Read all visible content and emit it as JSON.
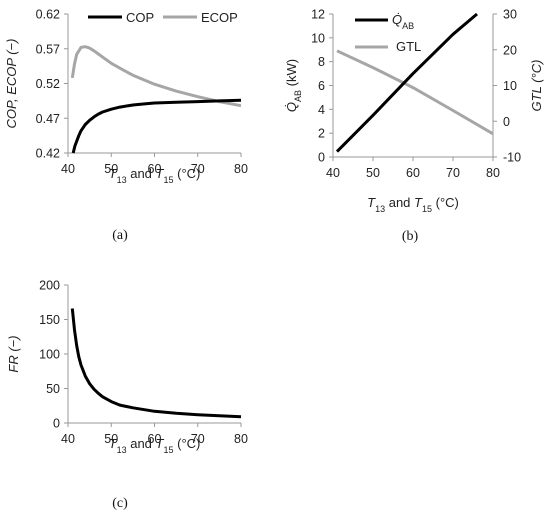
{
  "colors": {
    "black_series": "#000000",
    "gray_series": "#a6a6a6",
    "axis": "#999999"
  },
  "chart_data": [
    {
      "id": "a",
      "type": "line",
      "caption": "(a)",
      "xlabel_parts": [
        "T",
        "13",
        " and ",
        "T",
        "15",
        " (°C)"
      ],
      "ylabel": "COP, ECOP (−)",
      "xlim": [
        40,
        80
      ],
      "ylim": [
        0.42,
        0.62
      ],
      "xticks": [
        "40",
        "50",
        "60",
        "70",
        "80"
      ],
      "yticks": [
        "0.42",
        "0.47",
        "0.52",
        "0.57",
        "0.62"
      ],
      "xtick_values": [
        40,
        50,
        60,
        70,
        80
      ],
      "ytick_values": [
        0.42,
        0.47,
        0.52,
        0.57,
        0.62
      ],
      "grid": false,
      "legend_position": "top",
      "series": [
        {
          "name": "COP",
          "color": "#000000",
          "x": [
            41.2,
            41.6,
            42,
            42.5,
            43,
            44,
            45,
            46,
            47,
            48,
            50,
            52,
            55,
            58,
            60,
            65,
            70,
            75,
            80
          ],
          "y": [
            0.42,
            0.43,
            0.437,
            0.445,
            0.452,
            0.461,
            0.467,
            0.472,
            0.476,
            0.479,
            0.483,
            0.486,
            0.489,
            0.491,
            0.492,
            0.493,
            0.494,
            0.495,
            0.496
          ]
        },
        {
          "name": "ECOP",
          "color": "#a6a6a6",
          "x": [
            41,
            41.5,
            42,
            43,
            44,
            45,
            46,
            48,
            50,
            52,
            55,
            60,
            65,
            70,
            75,
            80
          ],
          "y": [
            0.528,
            0.548,
            0.562,
            0.572,
            0.573,
            0.571,
            0.567,
            0.558,
            0.549,
            0.542,
            0.532,
            0.519,
            0.509,
            0.501,
            0.494,
            0.488
          ]
        }
      ]
    },
    {
      "id": "b",
      "type": "line",
      "caption": "(b)",
      "xlabel_parts": [
        "T",
        "13",
        " and ",
        "T",
        "15",
        "  (°C)"
      ],
      "ylabel_left_parts": [
        "Q̇",
        "AB",
        " (kW)"
      ],
      "ylabel_right": "GTL (°C)",
      "xlim": [
        40,
        80
      ],
      "ylim_left": [
        0,
        12
      ],
      "ylim_right": [
        -10,
        30
      ],
      "xticks": [
        "40",
        "50",
        "60",
        "70",
        "80"
      ],
      "yticks_left": [
        "0",
        "2",
        "4",
        "6",
        "8",
        "10",
        "12"
      ],
      "yticks_right": [
        "-10",
        "0",
        "10",
        "20",
        "30"
      ],
      "xtick_values": [
        40,
        50,
        60,
        70,
        80
      ],
      "ytick_values_left": [
        0,
        2,
        4,
        6,
        8,
        10,
        12
      ],
      "ytick_values_right": [
        -10,
        0,
        10,
        20,
        30
      ],
      "grid": false,
      "legend_position": "top-left",
      "series": [
        {
          "name_parts": [
            "Q̇",
            "AB"
          ],
          "axis": "left",
          "color": "#000000",
          "x": [
            41,
            50,
            60,
            70,
            76
          ],
          "y": [
            0.45,
            3.5,
            7.0,
            10.3,
            12.0
          ]
        },
        {
          "name": "GTL",
          "axis": "right",
          "color": "#a6a6a6",
          "x": [
            41,
            50,
            60,
            70,
            80
          ],
          "y": [
            19.7,
            15.0,
            9.4,
            3.0,
            -3.5
          ]
        }
      ]
    },
    {
      "id": "c",
      "type": "line",
      "caption": "(c)",
      "xlabel_parts": [
        "T",
        "13",
        " and ",
        "T",
        "15",
        " (°C)"
      ],
      "ylabel": "FR (−)",
      "xlim": [
        40,
        80
      ],
      "ylim": [
        0,
        200
      ],
      "xticks": [
        "40",
        "50",
        "60",
        "70",
        "80"
      ],
      "yticks": [
        "0",
        "50",
        "100",
        "150",
        "200"
      ],
      "xtick_values": [
        40,
        50,
        60,
        70,
        80
      ],
      "ytick_values": [
        0,
        50,
        100,
        150,
        200
      ],
      "grid": false,
      "series": [
        {
          "color": "#000000",
          "x": [
            41,
            41.5,
            42,
            42.5,
            43,
            44,
            45,
            46,
            47,
            48,
            50,
            52,
            55,
            60,
            65,
            70,
            75,
            80
          ],
          "y": [
            166,
            135,
            112,
            96,
            84,
            68,
            57,
            49,
            43,
            38,
            31,
            26,
            22,
            17,
            14,
            12,
            10.5,
            9
          ]
        }
      ]
    }
  ]
}
